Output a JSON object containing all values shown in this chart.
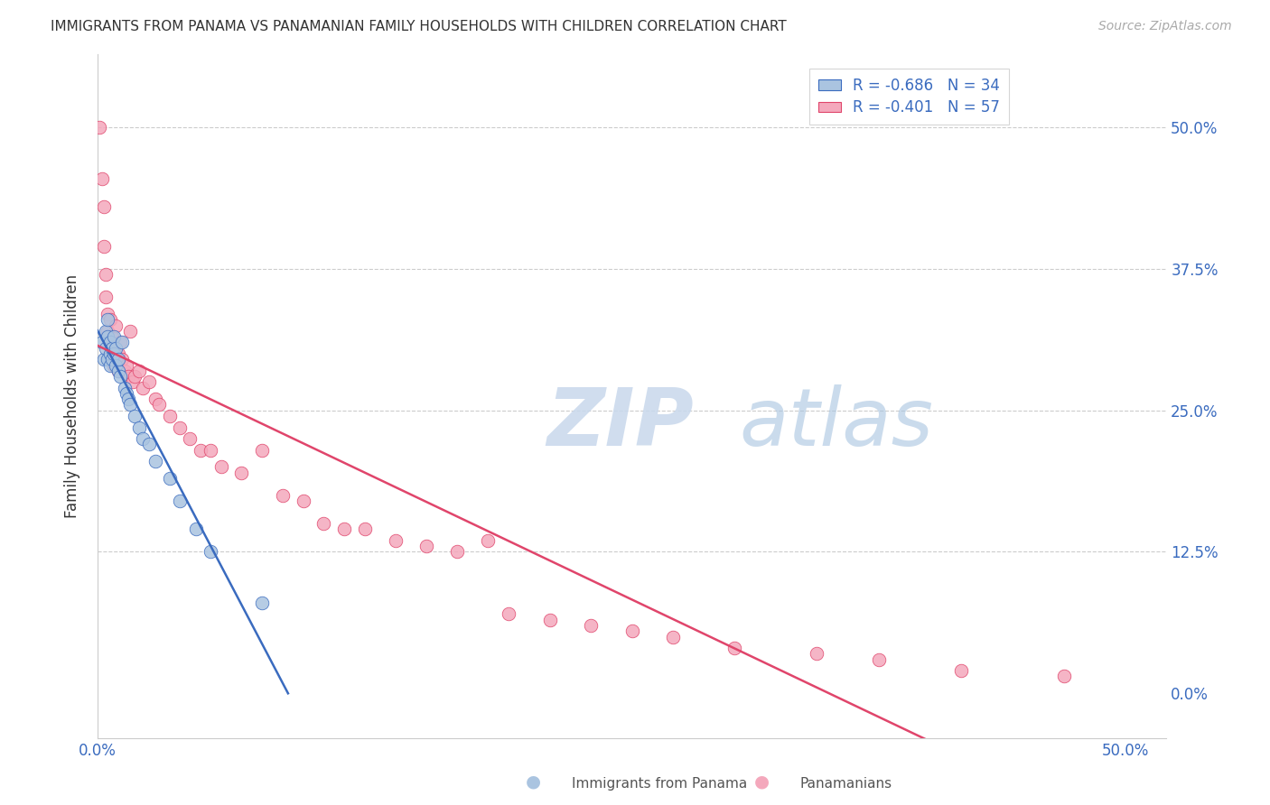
{
  "title": "IMMIGRANTS FROM PANAMA VS PANAMANIAN FAMILY HOUSEHOLDS WITH CHILDREN CORRELATION CHART",
  "source": "Source: ZipAtlas.com",
  "ylabel": "Family Households with Children",
  "background_color": "#ffffff",
  "blue_color": "#aac4e0",
  "pink_color": "#f4a8bc",
  "blue_line_color": "#3a6bbf",
  "pink_line_color": "#e0456b",
  "blue_R": "-0.686",
  "blue_N": "34",
  "pink_R": "-0.401",
  "pink_N": "57",
  "legend_label1": "Immigrants from Panama",
  "legend_label2": "Panamanians",
  "xlim": [
    0.0,
    0.52
  ],
  "ylim": [
    -0.04,
    0.565
  ],
  "yticks": [
    0.0,
    0.125,
    0.25,
    0.375,
    0.5
  ],
  "right_ytick_labels": [
    "0.0%",
    "12.5%",
    "25.0%",
    "37.5%",
    "50.0%"
  ],
  "xtick_positions": [
    0.0,
    0.5
  ],
  "xtick_labels": [
    "0.0%",
    "50.0%"
  ],
  "blue_scatter_x": [
    0.002,
    0.003,
    0.004,
    0.004,
    0.005,
    0.005,
    0.005,
    0.006,
    0.006,
    0.006,
    0.007,
    0.007,
    0.008,
    0.008,
    0.009,
    0.009,
    0.01,
    0.01,
    0.011,
    0.012,
    0.013,
    0.014,
    0.015,
    0.016,
    0.018,
    0.02,
    0.022,
    0.025,
    0.028,
    0.035,
    0.04,
    0.048,
    0.055,
    0.08
  ],
  "blue_scatter_y": [
    0.31,
    0.295,
    0.32,
    0.305,
    0.33,
    0.315,
    0.295,
    0.31,
    0.3,
    0.29,
    0.305,
    0.295,
    0.315,
    0.3,
    0.29,
    0.305,
    0.285,
    0.295,
    0.28,
    0.31,
    0.27,
    0.265,
    0.26,
    0.255,
    0.245,
    0.235,
    0.225,
    0.22,
    0.205,
    0.19,
    0.17,
    0.145,
    0.125,
    0.08
  ],
  "pink_scatter_x": [
    0.001,
    0.002,
    0.003,
    0.003,
    0.004,
    0.004,
    0.005,
    0.005,
    0.006,
    0.006,
    0.007,
    0.007,
    0.008,
    0.008,
    0.009,
    0.01,
    0.01,
    0.011,
    0.012,
    0.013,
    0.014,
    0.015,
    0.016,
    0.017,
    0.018,
    0.02,
    0.022,
    0.025,
    0.028,
    0.03,
    0.035,
    0.04,
    0.045,
    0.05,
    0.055,
    0.06,
    0.07,
    0.08,
    0.09,
    0.1,
    0.11,
    0.12,
    0.13,
    0.145,
    0.16,
    0.175,
    0.19,
    0.2,
    0.22,
    0.24,
    0.26,
    0.28,
    0.31,
    0.35,
    0.38,
    0.42,
    0.47
  ],
  "pink_scatter_y": [
    0.5,
    0.455,
    0.43,
    0.395,
    0.37,
    0.35,
    0.335,
    0.32,
    0.33,
    0.31,
    0.3,
    0.315,
    0.305,
    0.29,
    0.325,
    0.3,
    0.285,
    0.31,
    0.295,
    0.285,
    0.29,
    0.28,
    0.32,
    0.275,
    0.28,
    0.285,
    0.27,
    0.275,
    0.26,
    0.255,
    0.245,
    0.235,
    0.225,
    0.215,
    0.215,
    0.2,
    0.195,
    0.215,
    0.175,
    0.17,
    0.15,
    0.145,
    0.145,
    0.135,
    0.13,
    0.125,
    0.135,
    0.07,
    0.065,
    0.06,
    0.055,
    0.05,
    0.04,
    0.035,
    0.03,
    0.02,
    0.015
  ]
}
